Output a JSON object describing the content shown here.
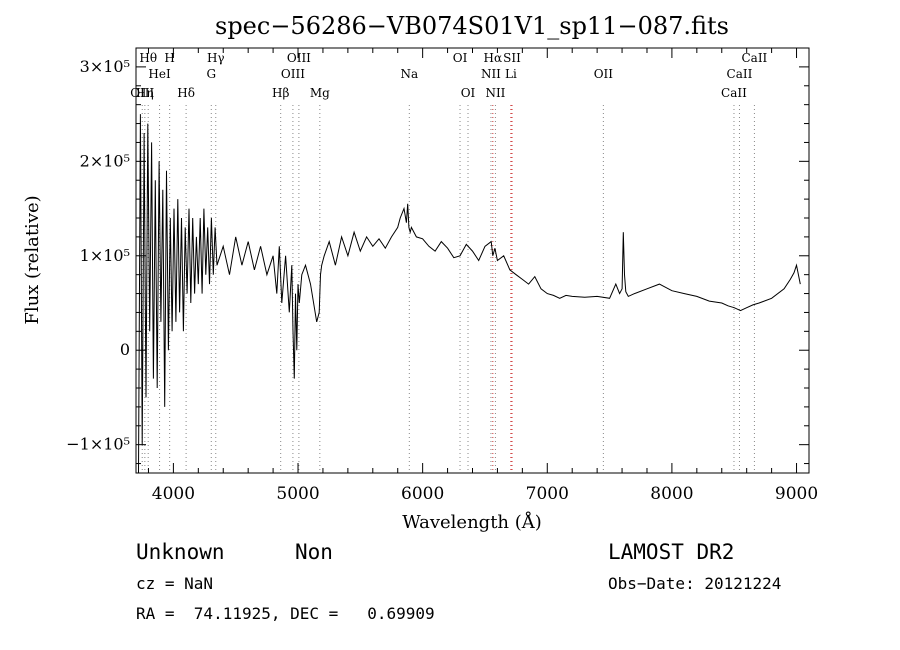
{
  "chart_data": {
    "type": "line",
    "title": "spec−56286−VB074S01V1_sp11−087.fits",
    "xlabel": "Wavelength (Å)",
    "ylabel": "Flux (relative)",
    "xlim": [
      3700,
      9100
    ],
    "ylim": [
      -130000,
      320000
    ],
    "grid": false,
    "x_ticks": [
      {
        "value": 4000,
        "label": "4000"
      },
      {
        "value": 5000,
        "label": "5000"
      },
      {
        "value": 6000,
        "label": "6000"
      },
      {
        "value": 7000,
        "label": "7000"
      },
      {
        "value": 8000,
        "label": "8000"
      },
      {
        "value": 9000,
        "label": "9000"
      }
    ],
    "y_ticks": [
      {
        "value": -100000,
        "label": "−1×10⁵"
      },
      {
        "value": 0,
        "label": "0"
      },
      {
        "value": 100000,
        "label": "1×10⁵"
      },
      {
        "value": 200000,
        "label": "2×10⁵"
      },
      {
        "value": 300000,
        "label": "3×10⁵"
      }
    ],
    "series": [
      {
        "x": [
          3720,
          3735,
          3750,
          3765,
          3780,
          3795,
          3810,
          3825,
          3840,
          3855,
          3870,
          3885,
          3900,
          3915,
          3930,
          3945,
          3960,
          3975,
          3990,
          4005,
          4020,
          4035,
          4050,
          4065,
          4080,
          4095,
          4110,
          4125,
          4140,
          4155,
          4170,
          4185,
          4200,
          4215,
          4230,
          4245,
          4260,
          4275,
          4290,
          4305,
          4320,
          4335,
          4350,
          4400,
          4450,
          4500,
          4550,
          4600,
          4650,
          4700,
          4750,
          4800,
          4830,
          4850,
          4870,
          4900,
          4930,
          4950,
          4960,
          4970,
          4980,
          4990,
          5000,
          5010,
          5030,
          5060,
          5100,
          5150,
          5170,
          5180,
          5190,
          5210,
          5250,
          5300,
          5350,
          5400,
          5450,
          5500,
          5550,
          5600,
          5650,
          5700,
          5750,
          5800,
          5820,
          5850,
          5870,
          5880,
          5890,
          5900,
          5910,
          5950,
          6000,
          6050,
          6100,
          6150,
          6200,
          6250,
          6300,
          6350,
          6400,
          6450,
          6500,
          6550,
          6563,
          6580,
          6600,
          6650,
          6700,
          6750,
          6800,
          6850,
          6900,
          6950,
          7000,
          7050,
          7100,
          7150,
          7200,
          7300,
          7400,
          7500,
          7550,
          7580,
          7600,
          7610,
          7620,
          7630,
          7650,
          7700,
          7800,
          7900,
          8000,
          8100,
          8200,
          8300,
          8400,
          8450,
          8500,
          8550,
          8600,
          8650,
          8700,
          8800,
          8900,
          8950,
          8980,
          9000,
          9030
        ],
        "y": [
          -130000,
          250000,
          -100000,
          230000,
          -50000,
          240000,
          20000,
          220000,
          -30000,
          180000,
          -40000,
          200000,
          30000,
          170000,
          -60000,
          190000,
          0,
          140000,
          20000,
          150000,
          30000,
          160000,
          40000,
          140000,
          20000,
          130000,
          60000,
          150000,
          50000,
          140000,
          60000,
          120000,
          70000,
          140000,
          60000,
          150000,
          80000,
          130000,
          70000,
          140000,
          80000,
          130000,
          90000,
          110000,
          80000,
          120000,
          90000,
          115000,
          85000,
          110000,
          80000,
          100000,
          60000,
          110000,
          50000,
          100000,
          40000,
          90000,
          20000,
          -30000,
          60000,
          0,
          70000,
          50000,
          80000,
          90000,
          70000,
          30000,
          40000,
          80000,
          90000,
          100000,
          115000,
          90000,
          120000,
          100000,
          125000,
          105000,
          120000,
          110000,
          118000,
          108000,
          120000,
          130000,
          140000,
          150000,
          135000,
          155000,
          130000,
          125000,
          130000,
          120000,
          118000,
          110000,
          105000,
          115000,
          108000,
          98000,
          100000,
          112000,
          105000,
          95000,
          110000,
          115000,
          100000,
          108000,
          95000,
          100000,
          85000,
          80000,
          75000,
          70000,
          78000,
          65000,
          60000,
          58000,
          55000,
          58000,
          57000,
          56000,
          57000,
          55000,
          70000,
          60000,
          65000,
          125000,
          80000,
          62000,
          57000,
          60000,
          65000,
          70000,
          63000,
          60000,
          57000,
          52000,
          50000,
          47000,
          45000,
          42000,
          45000,
          48000,
          50000,
          55000,
          65000,
          75000,
          82000,
          90000,
          70000
        ]
      }
    ],
    "lines": [
      {
        "x": 3750,
        "label": "OIII",
        "row": 3,
        "color": "#888888"
      },
      {
        "x": 3771,
        "label": "Hη",
        "row": 3,
        "color": "#888888"
      },
      {
        "x": 3798,
        "label": "Hθ",
        "row": 1,
        "color": "#888888"
      },
      {
        "x": 3889,
        "label": "HeI",
        "row": 2,
        "color": "#888888"
      },
      {
        "x": 3970,
        "label": "H",
        "row": 1,
        "color": "#888888"
      },
      {
        "x": 4102,
        "label": "Hδ",
        "row": 3,
        "color": "#888888"
      },
      {
        "x": 4304,
        "label": "G",
        "row": 2,
        "color": "#888888"
      },
      {
        "x": 4340,
        "label": "Hγ",
        "row": 1,
        "color": "#888888"
      },
      {
        "x": 4861,
        "label": "Hβ",
        "row": 3,
        "color": "#888888"
      },
      {
        "x": 4959,
        "label": "OIII",
        "row": 2,
        "color": "#888888"
      },
      {
        "x": 5007,
        "label": "OIII",
        "row": 1,
        "color": "#888888"
      },
      {
        "x": 5175,
        "label": "Mg",
        "row": 3,
        "color": "#888888"
      },
      {
        "x": 5893,
        "label": "Na",
        "row": 2,
        "color": "#888888"
      },
      {
        "x": 6300,
        "label": "OI",
        "row": 1,
        "color": "#888888"
      },
      {
        "x": 6364,
        "label": "OI",
        "row": 3,
        "color": "#888888"
      },
      {
        "x": 6548,
        "label": "NII",
        "row": 2,
        "color": "#888888"
      },
      {
        "x": 6563,
        "label": "Hα",
        "row": 1,
        "color": "#cc3333"
      },
      {
        "x": 6584,
        "label": "NII",
        "row": 3,
        "color": "#888888"
      },
      {
        "x": 6717,
        "label": "SII",
        "row": 1,
        "color": "#cc3333"
      },
      {
        "x": 6708,
        "label": "Li",
        "row": 2,
        "color": "#cc3333"
      },
      {
        "x": 7450,
        "label": "OII",
        "row": 2,
        "color": "#888888"
      },
      {
        "x": 8498,
        "label": "CaII",
        "row": 3,
        "color": "#888888"
      },
      {
        "x": 8542,
        "label": "CaII",
        "row": 2,
        "color": "#888888"
      },
      {
        "x": 8662,
        "label": "CaII",
        "row": 1,
        "color": "#888888"
      }
    ]
  },
  "info": {
    "class": "Unknown",
    "subclass": "Non",
    "survey": "LAMOST DR2",
    "cz": "cz = NaN",
    "obs_date": "Obs−Date: 20121224",
    "coords": "RA =  74.11925, DEC =   0.69909"
  }
}
